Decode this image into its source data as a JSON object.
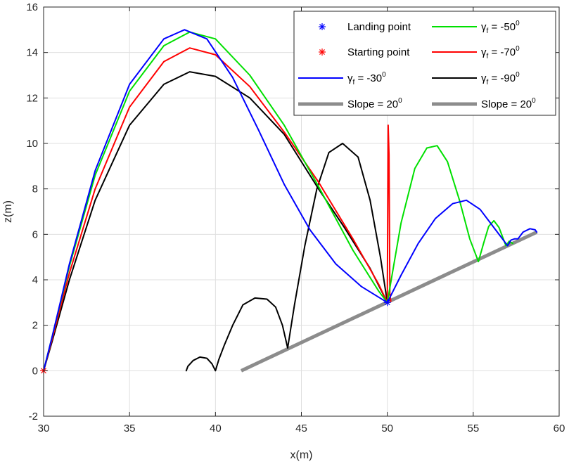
{
  "chart_data": {
    "type": "line",
    "xlabel": "x(m)",
    "ylabel": "z(m)",
    "xlim": [
      30,
      60
    ],
    "ylim": [
      -2,
      16
    ],
    "xticks": [
      30,
      35,
      40,
      45,
      50,
      55,
      60
    ],
    "yticks": [
      -2,
      0,
      2,
      4,
      6,
      8,
      10,
      12,
      14,
      16
    ],
    "grid": true,
    "legend_position": "top-right",
    "legend_columns": 2,
    "legend": [
      {
        "key": "landing",
        "base": "Landing point",
        "sub": "",
        "val": "",
        "sup": ""
      },
      {
        "key": "starting",
        "base": "Starting point",
        "sub": "",
        "val": "",
        "sup": ""
      },
      {
        "key": "g30",
        "base": "γ",
        "sub": "f",
        "val": " = -30",
        "sup": "0"
      },
      {
        "key": "slope1",
        "base": "Slope = 20",
        "sub": "",
        "val": "",
        "sup": "0"
      },
      {
        "key": "g50",
        "base": "γ",
        "sub": "f",
        "val": " = -50",
        "sup": "0"
      },
      {
        "key": "g70",
        "base": "γ",
        "sub": "f",
        "val": " = -70",
        "sup": "0"
      },
      {
        "key": "g90",
        "base": "γ",
        "sub": "f",
        "val": " = -90",
        "sup": "0"
      },
      {
        "key": "slope2",
        "base": "Slope = 20",
        "sub": "",
        "val": "",
        "sup": "0"
      }
    ],
    "markers": {
      "landing": {
        "x": 50.0,
        "y": 3.0,
        "color": "#0000FF",
        "symbol": "*"
      },
      "starting": {
        "x": 30.0,
        "y": 0.0,
        "color": "#FF0000",
        "symbol": "*"
      }
    },
    "slope": {
      "x": [
        41.5,
        58.7
      ],
      "y": [
        0.0,
        6.1
      ],
      "color": "#8C8C8C"
    },
    "series": [
      {
        "key": "g90",
        "color": "#000000",
        "x": [
          30.0,
          30.5,
          31.5,
          33.0,
          35.0,
          37.0,
          38.5,
          40.0,
          42.0,
          44.0,
          46.0,
          47.5,
          49.0,
          50.0
        ],
        "y": [
          0.0,
          1.3,
          4.0,
          7.5,
          10.8,
          12.6,
          13.15,
          12.95,
          12.0,
          10.4,
          8.0,
          6.3,
          4.5,
          3.0
        ]
      },
      {
        "key": "g90b",
        "color": "#000000",
        "x": [
          50.0,
          49.6,
          49.0,
          48.3,
          47.4,
          46.6,
          45.9,
          45.2,
          44.6,
          44.2,
          43.9,
          43.5,
          43.0,
          42.3,
          41.6,
          41.0,
          40.5,
          40.2,
          40.0,
          39.8,
          39.5,
          39.1,
          38.7,
          38.4,
          38.3
        ],
        "y": [
          3.0,
          5.0,
          7.5,
          9.4,
          10.0,
          9.6,
          8.0,
          5.5,
          2.9,
          1.0,
          2.0,
          2.8,
          3.15,
          3.2,
          2.9,
          2.0,
          1.1,
          0.5,
          0.0,
          0.3,
          0.55,
          0.6,
          0.45,
          0.2,
          0.0
        ]
      },
      {
        "key": "g70",
        "color": "#FF0000",
        "x": [
          30.0,
          30.5,
          31.5,
          33.0,
          35.0,
          37.0,
          38.5,
          40.0,
          42.0,
          44.0,
          46.0,
          48.0,
          49.5,
          50.0,
          50.0,
          50.05,
          50.1,
          50.15,
          50.2
        ],
        "y": [
          0.0,
          1.4,
          4.3,
          8.0,
          11.6,
          13.6,
          14.2,
          13.9,
          12.5,
          10.5,
          8.3,
          5.8,
          3.8,
          3.0,
          3.4,
          10.8,
          9.5,
          3.4,
          3.05
        ]
      },
      {
        "key": "g50",
        "color": "#00E000",
        "x": [
          30.0,
          30.5,
          31.5,
          33.0,
          35.0,
          37.0,
          38.5,
          40.0,
          42.0,
          44.0,
          46.0,
          48.0,
          49.5,
          50.0,
          50.8,
          51.6,
          52.3,
          52.9,
          53.5,
          54.2,
          54.8,
          55.3,
          55.6,
          55.9,
          56.2,
          56.5,
          56.9,
          57.1,
          57.3
        ],
        "y": [
          0.0,
          1.5,
          4.6,
          8.6,
          12.3,
          14.3,
          14.9,
          14.6,
          13.0,
          10.8,
          8.1,
          5.3,
          3.5,
          3.0,
          6.5,
          8.9,
          9.8,
          9.9,
          9.2,
          7.5,
          5.8,
          4.8,
          5.6,
          6.35,
          6.6,
          6.3,
          5.5,
          5.7,
          5.6
        ]
      },
      {
        "key": "g30",
        "color": "#0000FF",
        "x": [
          30.0,
          30.5,
          31.5,
          33.0,
          35.0,
          37.0,
          38.2,
          39.5,
          41.0,
          42.5,
          44.0,
          45.5,
          47.0,
          48.5,
          50.0,
          50.8,
          51.8,
          52.8,
          53.8,
          54.6,
          55.4,
          56.1,
          56.7,
          57.0,
          57.2,
          57.4,
          57.6,
          57.9,
          58.3,
          58.6,
          58.7
        ],
        "y": [
          0.0,
          1.5,
          4.7,
          8.8,
          12.6,
          14.6,
          15.0,
          14.6,
          12.9,
          10.6,
          8.2,
          6.2,
          4.7,
          3.7,
          3.0,
          4.2,
          5.6,
          6.7,
          7.35,
          7.5,
          7.1,
          6.4,
          5.8,
          5.5,
          5.75,
          5.8,
          5.8,
          6.1,
          6.25,
          6.2,
          6.1
        ]
      }
    ]
  }
}
